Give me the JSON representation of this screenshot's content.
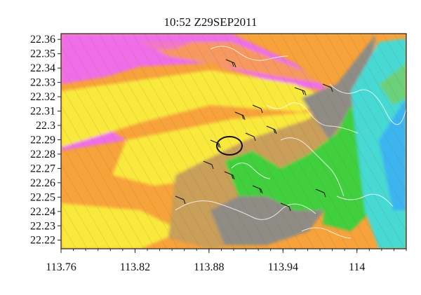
{
  "title": "10:52 Z29SEP2011",
  "map": {
    "x_ticks": [
      "113.76",
      "113.82",
      "113.88",
      "113.94",
      "114"
    ],
    "y_ticks": [
      "22.36",
      "22.35",
      "22.34",
      "22.33",
      "22.32",
      "22.31",
      "22.3",
      "22.29",
      "22.28",
      "22.27",
      "22.26",
      "22.25",
      "22.24",
      "22.23",
      "22.22"
    ],
    "x_range": [
      113.76,
      114.04
    ],
    "y_range": [
      22.214,
      22.364
    ]
  },
  "colors": {
    "magenta": "#ef6ee8",
    "orange": "#f7a23b",
    "yellow": "#f9e93d",
    "tan": "#c99f5a",
    "gray": "#8f8b85",
    "green": "#3fcf3d",
    "cyan": "#46d9d4",
    "blue": "#3ab4f0"
  }
}
